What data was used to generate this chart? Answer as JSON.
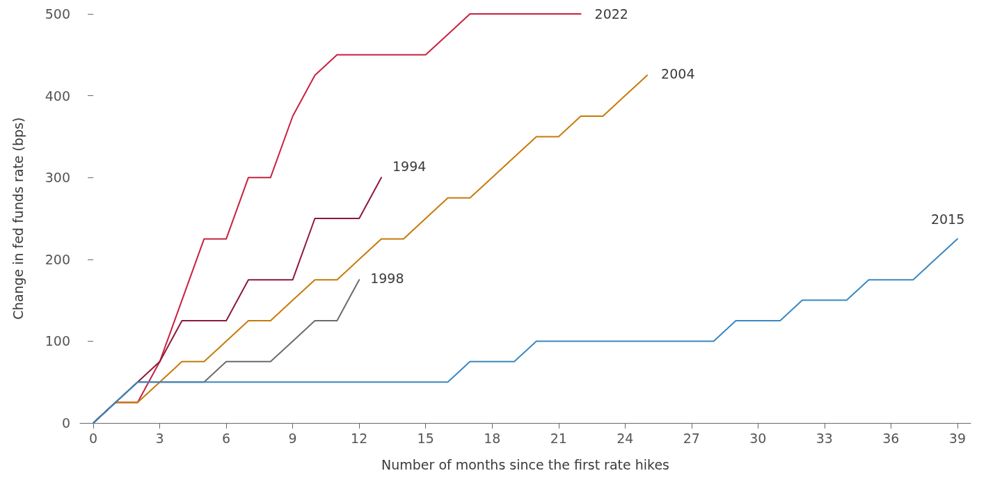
{
  "chart_data": {
    "type": "line",
    "xlabel": "Number of months since the first rate hikes",
    "ylabel": "Change in fed funds rate (bps)",
    "xlim": [
      -0.6,
      39.6
    ],
    "xticks": [
      0,
      3,
      6,
      9,
      12,
      15,
      18,
      21,
      24,
      27,
      30,
      33,
      36,
      39
    ],
    "ylim": [
      0,
      500
    ],
    "yticks": [
      0,
      100,
      200,
      300,
      400,
      500
    ],
    "grid": false,
    "legend": false,
    "marker": "none",
    "line_style": "solid",
    "series": [
      {
        "name": "2022",
        "color": "#c8213f",
        "x": [
          0,
          1,
          2,
          3,
          4,
          5,
          6,
          7,
          8,
          9,
          10,
          11,
          12,
          13,
          14,
          15,
          16,
          17,
          18,
          19,
          20,
          21,
          22
        ],
        "values": [
          0,
          25,
          25,
          75,
          150,
          225,
          225,
          300,
          300,
          375,
          425,
          450,
          450,
          450,
          450,
          450,
          475,
          500,
          500,
          500,
          500,
          500,
          500
        ]
      },
      {
        "name": "2004",
        "color": "#c67a0a",
        "x": [
          0,
          1,
          2,
          3,
          4,
          5,
          6,
          7,
          8,
          9,
          10,
          11,
          12,
          13,
          14,
          15,
          16,
          17,
          18,
          19,
          20,
          21,
          22,
          23,
          24,
          25
        ],
        "values": [
          0,
          25,
          25,
          50,
          75,
          75,
          100,
          125,
          125,
          150,
          175,
          175,
          200,
          225,
          225,
          250,
          275,
          275,
          300,
          325,
          350,
          350,
          375,
          375,
          400,
          425
        ]
      },
      {
        "name": "1994",
        "color": "#8b1a3a",
        "x": [
          0,
          1,
          2,
          3,
          4,
          5,
          6,
          7,
          8,
          9,
          10,
          11,
          12,
          13
        ],
        "values": [
          0,
          25,
          50,
          75,
          125,
          125,
          125,
          175,
          175,
          175,
          250,
          250,
          250,
          300
        ]
      },
      {
        "name": "1998",
        "color": "#6b6b6b",
        "x": [
          0,
          1,
          2,
          3,
          4,
          5,
          6,
          7,
          8,
          9,
          10,
          11,
          12
        ],
        "values": [
          0,
          25,
          50,
          50,
          50,
          50,
          75,
          75,
          75,
          100,
          125,
          125,
          175
        ]
      },
      {
        "name": "2015",
        "color": "#3a87c0",
        "x": [
          0,
          1,
          2,
          3,
          4,
          5,
          6,
          7,
          8,
          9,
          10,
          11,
          12,
          13,
          14,
          15,
          16,
          17,
          18,
          19,
          20,
          21,
          22,
          23,
          24,
          25,
          26,
          27,
          28,
          29,
          30,
          31,
          32,
          33,
          34,
          35,
          36,
          37,
          38,
          39
        ],
        "values": [
          0,
          25,
          50,
          50,
          50,
          50,
          50,
          50,
          50,
          50,
          50,
          50,
          50,
          50,
          50,
          50,
          50,
          75,
          75,
          75,
          100,
          100,
          100,
          100,
          100,
          100,
          100,
          100,
          100,
          125,
          125,
          125,
          150,
          150,
          150,
          175,
          175,
          175,
          200,
          225
        ]
      }
    ]
  }
}
